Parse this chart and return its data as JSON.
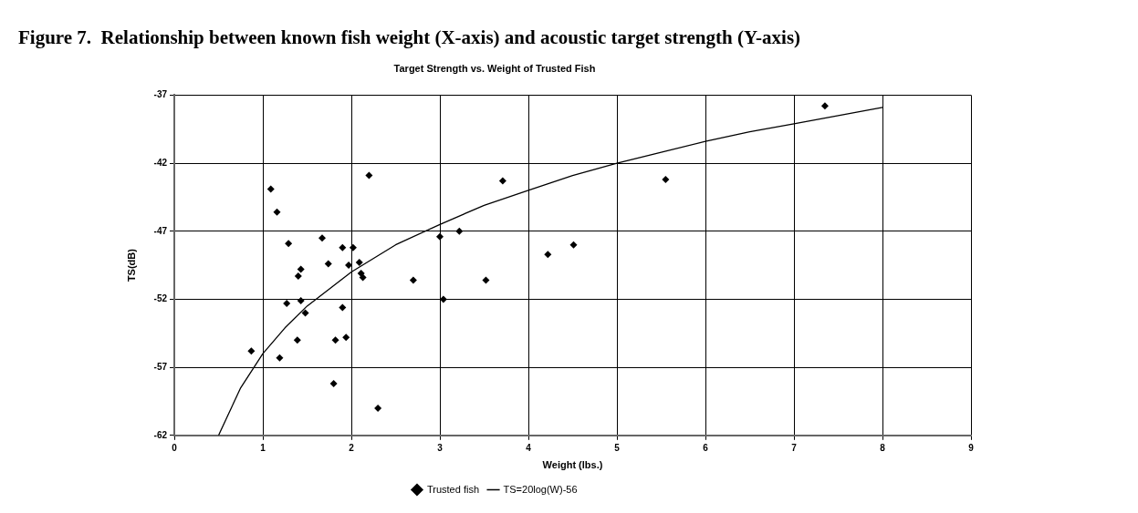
{
  "chart_data": {
    "type": "scatter",
    "title": "Figure 7.  Relationship between known fish weight (X-axis) and acoustic target strength (Y-axis)",
    "subtitle": "Target Strength vs. Weight of Trusted Fish",
    "xlabel": "Weight (lbs.)",
    "ylabel": "TS(dB)",
    "xlim": [
      0,
      9
    ],
    "xticks": [
      0,
      1,
      2,
      3,
      4,
      5,
      6,
      7,
      8,
      9
    ],
    "ylim": [
      -62,
      -37
    ],
    "yticks": [
      -62,
      -57,
      -52,
      -47,
      -42,
      -37
    ],
    "grid": true,
    "legend": "bottom",
    "series": [
      {
        "name": "Trusted fish",
        "type": "scatter",
        "marker": "diamond",
        "color": "#000000",
        "x": [
          2.2,
          1.09,
          1.16,
          1.29,
          1.67,
          1.9,
          2.02,
          1.74,
          1.97,
          2.09,
          1.43,
          1.4,
          2.11,
          2.13,
          1.27,
          1.43,
          1.9,
          1.48,
          1.39,
          1.82,
          1.94,
          0.87,
          1.19,
          1.8,
          2.3,
          2.7,
          3.0,
          3.22,
          3.04,
          3.52,
          3.71,
          4.22,
          4.51,
          5.55,
          7.35
        ],
        "values": [
          -42.9,
          -43.9,
          -45.6,
          -47.9,
          -47.5,
          -48.2,
          -48.2,
          -49.4,
          -49.5,
          -49.3,
          -49.8,
          -50.3,
          -50.1,
          -50.4,
          -52.3,
          -52.1,
          -52.6,
          -53.0,
          -55.0,
          -55.0,
          -54.8,
          -55.8,
          -56.3,
          -58.2,
          -60.0,
          -50.6,
          -47.4,
          -47.0,
          -52.0,
          -50.6,
          -43.3,
          -48.7,
          -48.0,
          -43.2,
          -37.8
        ]
      },
      {
        "name": "TS=20log(W)-56",
        "type": "line",
        "marker": "none",
        "line_style": "solid",
        "color": "#000000",
        "x": [
          0.5,
          0.75,
          1,
          1.25,
          1.5,
          2,
          2.5,
          3,
          3.5,
          4,
          4.5,
          5,
          5.5,
          6,
          6.5,
          7,
          7.5,
          8
        ],
        "values": [
          -62.0,
          -58.5,
          -56.0,
          -54.1,
          -52.5,
          -50.0,
          -48.0,
          -46.5,
          -45.1,
          -44.0,
          -42.9,
          -42.0,
          -41.2,
          -40.4,
          -39.7,
          -39.1,
          -38.5,
          -37.9
        ]
      }
    ]
  }
}
